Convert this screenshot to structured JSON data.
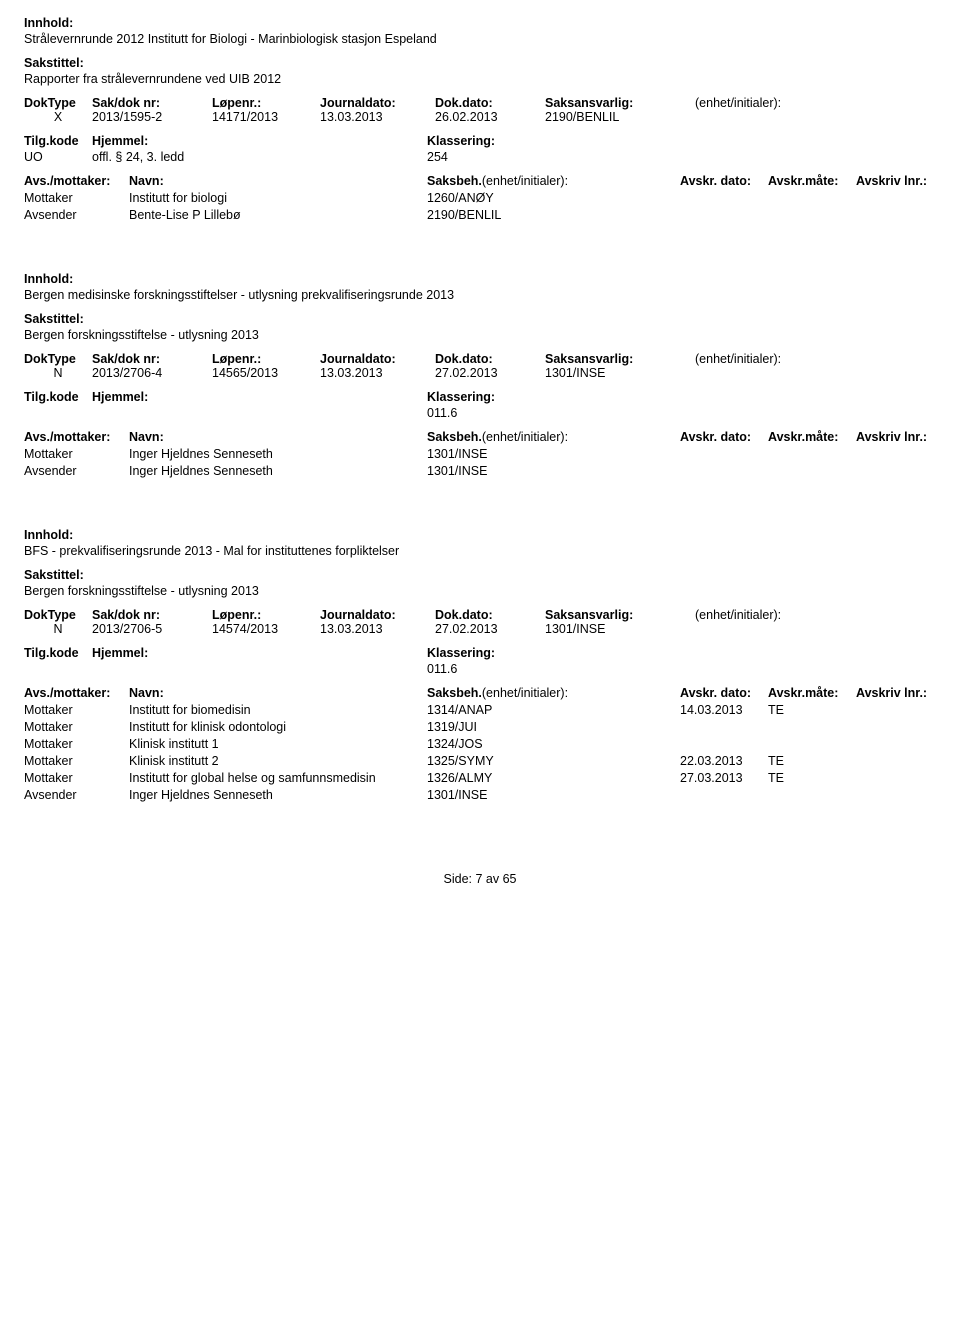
{
  "labels": {
    "innhold": "Innhold:",
    "sakstittel": "Sakstittel:",
    "doktype": "DokType",
    "sakdok": "Sak/dok nr:",
    "lopenr": "Løpenr.:",
    "journaldato": "Journaldato:",
    "dokdato": "Dok.dato:",
    "saksansvarlig": "Saksansvarlig:",
    "enhet": "(enhet/initialer):",
    "tilgkode": "Tilg.kode",
    "hjemmel": "Hjemmel:",
    "klassering": "Klassering:",
    "avsmottaker": "Avs./mottaker:",
    "navn": "Navn:",
    "saksbeh": "Saksbeh.",
    "saksbeh_enh": "(enhet/initialer):",
    "avskr_dato": "Avskr. dato:",
    "avskr_mate": "Avskr.måte:",
    "avskriv_lnr": "Avskriv lnr.:",
    "mottaker": "Mottaker",
    "avsender": "Avsender"
  },
  "records": [
    {
      "innhold": "Strålevernrunde 2012 Institutt for Biologi - Marinbiologisk stasjon Espeland",
      "sakstittel": "Rapporter fra strålevernrundene ved UIB 2012",
      "doktype": "X",
      "sakdok": "2013/1595-2",
      "lopenr": "14171/2013",
      "journaldato": "13.03.2013",
      "dokdato": "26.02.2013",
      "saksansvarlig": "2190/BENLIL",
      "tilgkode": "UO",
      "hjemmel": "offl. § 24, 3. ledd",
      "klassering": "254",
      "parties": [
        {
          "role": "Mottaker",
          "navn": "Institutt for biologi",
          "saksbeh": "1260/ANØY",
          "adt": "",
          "amt": ""
        },
        {
          "role": "Avsender",
          "navn": "Bente-Lise P Lillebø",
          "saksbeh": "2190/BENLIL",
          "adt": "",
          "amt": ""
        }
      ]
    },
    {
      "innhold": "Bergen medisinske forskningsstiftelser - utlysning prekvalifiseringsrunde 2013",
      "sakstittel": "Bergen forskningsstiftelse - utlysning 2013",
      "doktype": "N",
      "sakdok": "2013/2706-4",
      "lopenr": "14565/2013",
      "journaldato": "13.03.2013",
      "dokdato": "27.02.2013",
      "saksansvarlig": "1301/INSE",
      "tilgkode": "",
      "hjemmel": "",
      "klassering": "011.6",
      "parties": [
        {
          "role": "Mottaker",
          "navn": "Inger Hjeldnes Senneseth",
          "saksbeh": "1301/INSE",
          "adt": "",
          "amt": ""
        },
        {
          "role": "Avsender",
          "navn": "Inger Hjeldnes Senneseth",
          "saksbeh": "1301/INSE",
          "adt": "",
          "amt": ""
        }
      ]
    },
    {
      "innhold": "BFS - prekvalifiseringsrunde 2013 - Mal for instituttenes forpliktelser",
      "sakstittel": "Bergen forskningsstiftelse - utlysning 2013",
      "doktype": "N",
      "sakdok": "2013/2706-5",
      "lopenr": "14574/2013",
      "journaldato": "13.03.2013",
      "dokdato": "27.02.2013",
      "saksansvarlig": "1301/INSE",
      "tilgkode": "",
      "hjemmel": "",
      "klassering": "011.6",
      "parties": [
        {
          "role": "Mottaker",
          "navn": "Institutt for biomedisin",
          "saksbeh": "1314/ANAP",
          "adt": "14.03.2013",
          "amt": "TE"
        },
        {
          "role": "Mottaker",
          "navn": "Institutt for klinisk odontologi",
          "saksbeh": "1319/JUI",
          "adt": "",
          "amt": ""
        },
        {
          "role": "Mottaker",
          "navn": "Klinisk institutt 1",
          "saksbeh": "1324/JOS",
          "adt": "",
          "amt": ""
        },
        {
          "role": "Mottaker",
          "navn": "Klinisk institutt 2",
          "saksbeh": "1325/SYMY",
          "adt": "22.03.2013",
          "amt": "TE"
        },
        {
          "role": "Mottaker",
          "navn": "Institutt for global helse og samfunnsmedisin",
          "saksbeh": "1326/ALMY",
          "adt": "27.03.2013",
          "amt": "TE"
        },
        {
          "role": "Avsender",
          "navn": "Inger Hjeldnes Senneseth",
          "saksbeh": "1301/INSE",
          "adt": "",
          "amt": ""
        }
      ]
    }
  ],
  "footer": "Side: 7 av 65"
}
